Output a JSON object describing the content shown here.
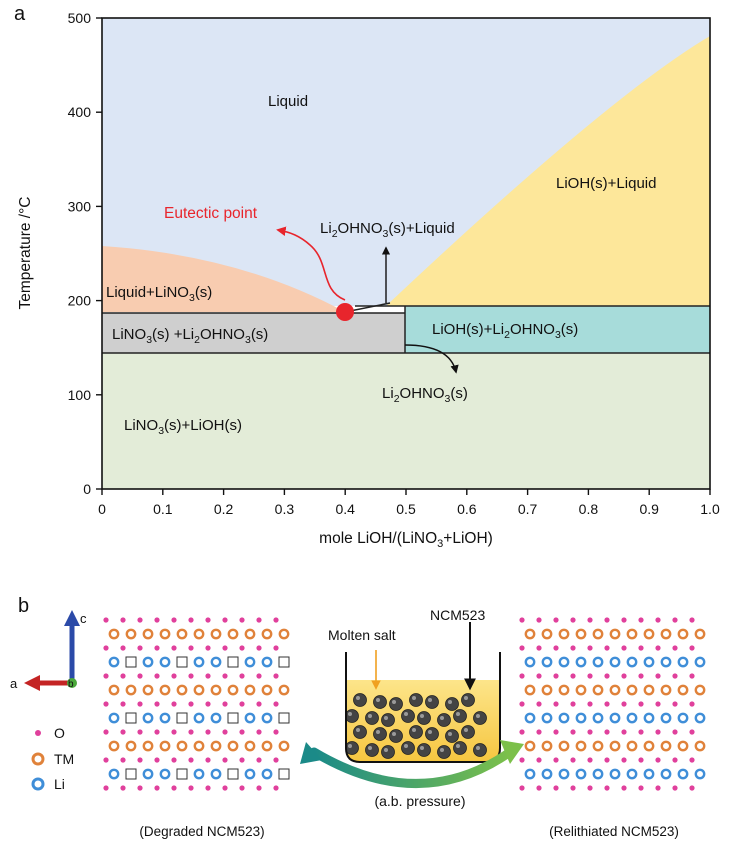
{
  "panel_a": {
    "label": "a",
    "xlabel_parts": [
      "mole LiOH/(LiNO",
      "3",
      "+LiOH)"
    ],
    "ylabel": "Temperature /°C",
    "x_ticks": [
      "0",
      "0.1",
      "0.2",
      "0.3",
      "0.4",
      "0.5",
      "0.6",
      "0.7",
      "0.8",
      "0.9",
      "1.0"
    ],
    "y_ticks": [
      "0",
      "100",
      "200",
      "300",
      "400",
      "500"
    ],
    "regions": {
      "liquid": "Liquid",
      "lioh_liquid": "LiOH(s)+Liquid",
      "liquid_lino3": [
        "Liquid+LiNO",
        "3",
        "(s)"
      ],
      "lino3_li2ohno3": [
        "LiNO",
        "3",
        "(s) +Li",
        "2",
        "OHNO",
        "3",
        "(s)"
      ],
      "lioh_li2ohno3": [
        "LiOH(s)+Li",
        "2",
        "OHNO",
        "3",
        "(s)"
      ],
      "lino3_lioh": [
        "LiNO",
        "3",
        "(s)+LiOH(s)"
      ],
      "li2ohno3_liquid": [
        "Li",
        "2",
        "OHNO",
        "3",
        "(s)+Liquid"
      ],
      "li2ohno3": [
        "Li",
        "2",
        "OHNO",
        "3",
        "(s)"
      ]
    },
    "eutectic_label": "Eutectic point",
    "colors": {
      "liquid": "#dce6f5",
      "lioh_liquid": "#fde79a",
      "liquid_lino3": "#f8ccb0",
      "lino3_li2ohno3": "#cfcfcf",
      "lioh_li2ohno3": "#a7dcda",
      "lino3_lioh": "#e3ecd8",
      "eutectic": "#e8252c",
      "eutectic_label": "#e8252c"
    }
  },
  "panel_b": {
    "label": "b",
    "axes": {
      "c": "c",
      "a": "a",
      "b": "b"
    },
    "legend": [
      "O",
      "TM",
      "Li"
    ],
    "legend_colors": {
      "O": "#e0409c",
      "TM": "#e0823a",
      "Li": "#3f8ed8"
    },
    "molten_salt": "Molten salt",
    "ncm_label": "NCM523",
    "pressure": "(a.b. pressure)",
    "degraded": "(Degraded NCM523)",
    "relithiated": "(Relithiated NCM523)"
  }
}
